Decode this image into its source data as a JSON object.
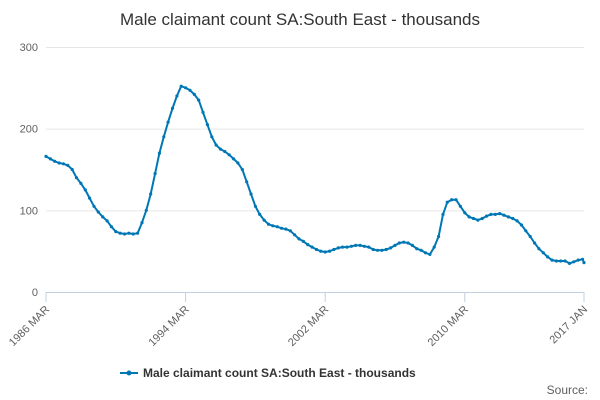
{
  "chart_data": {
    "type": "line",
    "title": "Male claimant count SA:South East - thousands",
    "xlabel": "",
    "ylabel": "",
    "ylim": [
      0,
      300
    ],
    "y_ticks": [
      "0",
      "100",
      "200",
      "300"
    ],
    "x_tick_labels": [
      "1986 MAR",
      "1994 MAR",
      "2002 MAR",
      "2010 MAR",
      "2017 JAN"
    ],
    "x_range": [
      "1986-03",
      "2017-01"
    ],
    "grid": true,
    "legend": "bottom-center",
    "series": [
      {
        "name": "Male claimant count SA:South East - thousands",
        "color": "#0077b5",
        "x": [
          "1986-03",
          "1986-06",
          "1986-09",
          "1986-12",
          "1987-03",
          "1987-06",
          "1987-09",
          "1987-12",
          "1988-03",
          "1988-06",
          "1988-09",
          "1988-12",
          "1989-03",
          "1989-06",
          "1989-09",
          "1989-12",
          "1990-03",
          "1990-06",
          "1990-09",
          "1990-12",
          "1991-03",
          "1991-06",
          "1991-09",
          "1991-12",
          "1992-03",
          "1992-06",
          "1992-09",
          "1992-12",
          "1993-03",
          "1993-06",
          "1993-09",
          "1993-12",
          "1994-03",
          "1994-06",
          "1994-09",
          "1994-12",
          "1995-03",
          "1995-06",
          "1995-09",
          "1995-12",
          "1996-03",
          "1996-06",
          "1996-09",
          "1996-12",
          "1997-03",
          "1997-06",
          "1997-09",
          "1997-12",
          "1998-03",
          "1998-06",
          "1998-09",
          "1998-12",
          "1999-03",
          "1999-06",
          "1999-09",
          "1999-12",
          "2000-03",
          "2000-06",
          "2000-09",
          "2000-12",
          "2001-03",
          "2001-06",
          "2001-09",
          "2001-12",
          "2002-03",
          "2002-06",
          "2002-09",
          "2002-12",
          "2003-03",
          "2003-06",
          "2003-09",
          "2003-12",
          "2004-03",
          "2004-06",
          "2004-09",
          "2004-12",
          "2005-03",
          "2005-06",
          "2005-09",
          "2005-12",
          "2006-03",
          "2006-06",
          "2006-09",
          "2006-12",
          "2007-03",
          "2007-06",
          "2007-09",
          "2007-12",
          "2008-03",
          "2008-06",
          "2008-09",
          "2008-12",
          "2009-03",
          "2009-06",
          "2009-09",
          "2009-12",
          "2010-03",
          "2010-06",
          "2010-09",
          "2010-12",
          "2011-03",
          "2011-06",
          "2011-09",
          "2011-12",
          "2012-03",
          "2012-06",
          "2012-09",
          "2012-12",
          "2013-03",
          "2013-06",
          "2013-09",
          "2013-12",
          "2014-03",
          "2014-06",
          "2014-09",
          "2014-12",
          "2015-03",
          "2015-06",
          "2015-09",
          "2015-12",
          "2016-03",
          "2016-06",
          "2016-09",
          "2016-12",
          "2017-01"
        ],
        "values": [
          166,
          163,
          160,
          158,
          157,
          155,
          150,
          140,
          133,
          125,
          115,
          105,
          98,
          92,
          87,
          80,
          74,
          72,
          71,
          72,
          71,
          72,
          85,
          100,
          120,
          145,
          170,
          190,
          208,
          225,
          240,
          252,
          250,
          247,
          242,
          235,
          220,
          205,
          190,
          180,
          175,
          172,
          168,
          163,
          158,
          150,
          135,
          120,
          105,
          95,
          88,
          83,
          81,
          80,
          78,
          77,
          75,
          70,
          65,
          62,
          58,
          55,
          52,
          50,
          49,
          50,
          52,
          54,
          55,
          55,
          56,
          57,
          57,
          56,
          55,
          52,
          51,
          51,
          52,
          54,
          57,
          60,
          61,
          60,
          57,
          53,
          51,
          48,
          46,
          55,
          68,
          95,
          110,
          113,
          113,
          105,
          97,
          92,
          90,
          88,
          90,
          93,
          95,
          95,
          96,
          94,
          92,
          90,
          87,
          82,
          75,
          68,
          60,
          53,
          48,
          43,
          39,
          38,
          38,
          38,
          35,
          37,
          39,
          40,
          36
        ]
      }
    ],
    "credit": "Source:"
  }
}
